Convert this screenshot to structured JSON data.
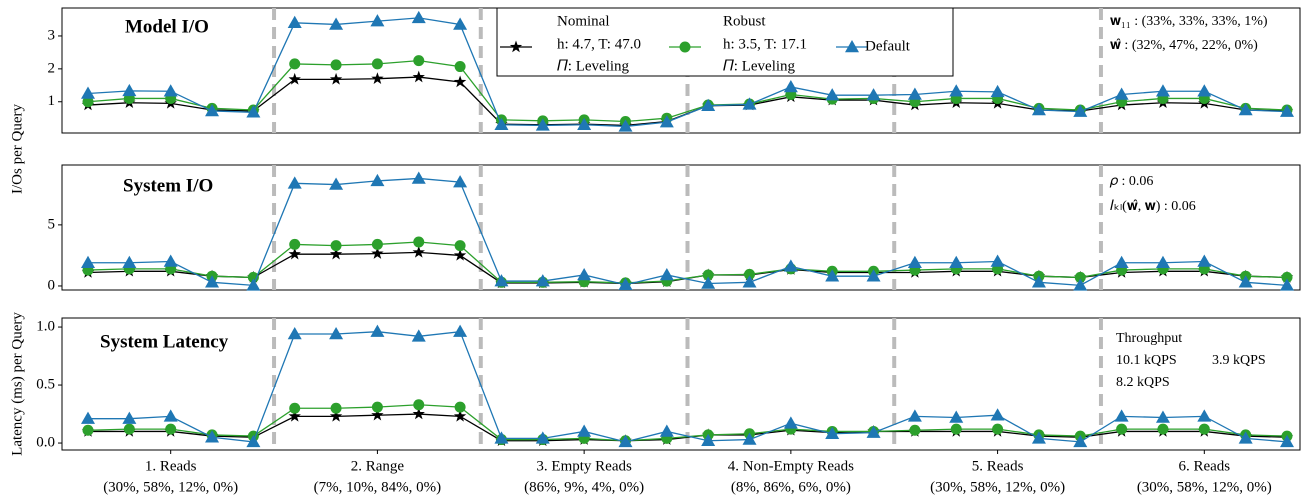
{
  "chart_data": [
    {
      "type": "line",
      "title": "Model I/O",
      "ylabel": "I/Os per Query",
      "ylim": [
        0.05,
        3.85
      ],
      "yticks": [
        1,
        2,
        3
      ],
      "legend": true,
      "series": [
        {
          "name": "Nominal",
          "details": [
            "h: 4.7, T: 47.0",
            "𝛱: Leveling"
          ],
          "color": "#000000",
          "marker": "star",
          "values": [
            0.9,
            0.97,
            0.95,
            0.75,
            0.72,
            1.68,
            1.68,
            1.7,
            1.75,
            1.6,
            0.32,
            0.3,
            0.32,
            0.28,
            0.4,
            0.88,
            0.9,
            1.15,
            1.05,
            1.05,
            0.9,
            0.97,
            0.95,
            0.75,
            0.72,
            0.9,
            0.97,
            0.95,
            0.75,
            0.72
          ]
        },
        {
          "name": "Robust",
          "details": [
            "h: 3.5, T: 17.1",
            "𝛱: Leveling"
          ],
          "color": "#2ca02c",
          "marker": "circle",
          "values": [
            1.0,
            1.1,
            1.1,
            0.8,
            0.75,
            2.15,
            2.12,
            2.15,
            2.25,
            2.07,
            0.45,
            0.42,
            0.45,
            0.4,
            0.5,
            0.9,
            0.93,
            1.22,
            1.08,
            1.1,
            1.0,
            1.1,
            1.1,
            0.8,
            0.75,
            1.0,
            1.1,
            1.1,
            0.8,
            0.75
          ]
        },
        {
          "name": "Default",
          "color": "#1f77b4",
          "marker": "triangle",
          "values": [
            1.25,
            1.33,
            1.32,
            0.72,
            0.68,
            3.4,
            3.35,
            3.45,
            3.55,
            3.35,
            0.3,
            0.28,
            0.3,
            0.25,
            0.38,
            0.88,
            0.92,
            1.45,
            1.2,
            1.2,
            1.22,
            1.32,
            1.3,
            0.75,
            0.7,
            1.22,
            1.32,
            1.32,
            0.75,
            0.7
          ]
        }
      ],
      "annotations": [
        {
          "text": "𝐰₁₁ : (33%, 33%, 33%, 1%)",
          "color": "#000000"
        },
        {
          "text": "𝐰̂ : (32%, 47%, 22%, 0%)",
          "color": "#000000"
        }
      ]
    },
    {
      "type": "line",
      "title": "System I/O",
      "ylim": [
        -0.33,
        9.9
      ],
      "yticks": [
        0,
        5
      ],
      "series": [
        {
          "color": "#000000",
          "marker": "star",
          "values": [
            1.1,
            1.2,
            1.2,
            0.8,
            0.7,
            2.6,
            2.6,
            2.65,
            2.75,
            2.5,
            0.25,
            0.25,
            0.3,
            0.2,
            0.35,
            0.9,
            0.9,
            1.35,
            1.1,
            1.1,
            1.1,
            1.2,
            1.2,
            0.8,
            0.7,
            1.1,
            1.2,
            1.2,
            0.8,
            0.7
          ]
        },
        {
          "color": "#2ca02c",
          "marker": "circle",
          "values": [
            1.3,
            1.4,
            1.4,
            0.8,
            0.7,
            3.4,
            3.3,
            3.4,
            3.6,
            3.3,
            0.3,
            0.3,
            0.35,
            0.25,
            0.4,
            0.9,
            0.95,
            1.4,
            1.2,
            1.2,
            1.3,
            1.4,
            1.4,
            0.8,
            0.7,
            1.3,
            1.4,
            1.4,
            0.8,
            0.7
          ]
        },
        {
          "color": "#1f77b4",
          "marker": "triangle",
          "values": [
            1.9,
            1.9,
            2.0,
            0.3,
            0.05,
            8.4,
            8.3,
            8.6,
            8.8,
            8.5,
            0.4,
            0.4,
            0.9,
            0.1,
            0.9,
            0.2,
            0.3,
            1.6,
            0.8,
            0.8,
            1.9,
            1.9,
            2.0,
            0.3,
            0.05,
            1.9,
            1.9,
            2.0,
            0.3,
            0.05
          ]
        }
      ],
      "annotations": [
        {
          "text": "𝜌 : 0.06",
          "color": "#000000"
        },
        {
          "text": "𝐼ₖₗ(𝐰̂, 𝐰) : 0.06",
          "color": "#000000"
        }
      ]
    },
    {
      "type": "line",
      "title": "System Latency",
      "ylabel": "Latency (ms) per Query",
      "ylim": [
        -0.06,
        1.078
      ],
      "yticks": [
        {
          "value": 0,
          "label": "0.0"
        },
        0.5,
        {
          "value": 1,
          "label": "1.0"
        }
      ],
      "groups": [
        {
          "label": "1. Reads",
          "mix": "(30%, 58%, 12%, 0%)"
        },
        {
          "label": "2. Range",
          "mix": "(7%, 10%, 84%, 0%)"
        },
        {
          "label": "3. Empty Reads",
          "mix": "(86%, 9%, 4%, 0%)"
        },
        {
          "label": "4. Non-Empty Reads",
          "mix": "(8%, 86%, 6%, 0%)"
        },
        {
          "label": "5. Reads",
          "mix": "(30%, 58%, 12%, 0%)"
        },
        {
          "label": "6. Reads",
          "mix": "(30%, 58%, 12%, 0%)"
        }
      ],
      "series": [
        {
          "color": "#000000",
          "marker": "star",
          "values": [
            0.1,
            0.1,
            0.1,
            0.06,
            0.05,
            0.23,
            0.23,
            0.24,
            0.25,
            0.23,
            0.02,
            0.02,
            0.03,
            0.02,
            0.03,
            0.07,
            0.07,
            0.11,
            0.09,
            0.1,
            0.1,
            0.1,
            0.1,
            0.06,
            0.05,
            0.1,
            0.1,
            0.1,
            0.06,
            0.05
          ]
        },
        {
          "color": "#2ca02c",
          "marker": "circle",
          "values": [
            0.11,
            0.12,
            0.12,
            0.07,
            0.06,
            0.3,
            0.3,
            0.31,
            0.33,
            0.31,
            0.03,
            0.03,
            0.04,
            0.02,
            0.04,
            0.07,
            0.08,
            0.12,
            0.1,
            0.1,
            0.11,
            0.12,
            0.12,
            0.07,
            0.06,
            0.12,
            0.12,
            0.12,
            0.07,
            0.06
          ]
        },
        {
          "color": "#1f77b4",
          "marker": "triangle",
          "values": [
            0.21,
            0.21,
            0.23,
            0.05,
            0.01,
            0.94,
            0.94,
            0.96,
            0.92,
            0.96,
            0.04,
            0.04,
            0.1,
            0.01,
            0.1,
            0.02,
            0.03,
            0.17,
            0.08,
            0.09,
            0.23,
            0.22,
            0.24,
            0.04,
            0.01,
            0.23,
            0.22,
            0.23,
            0.04,
            0.01
          ]
        }
      ],
      "annotations": [
        {
          "text": "Throughput",
          "color": "#000000"
        },
        {
          "text": "10.1 kQPS",
          "color": "#000000"
        },
        {
          "text": "3.9 kQPS",
          "color": "#1f77b4"
        },
        {
          "text": "8.2 kQPS",
          "color": "#2ca02c"
        }
      ]
    }
  ]
}
